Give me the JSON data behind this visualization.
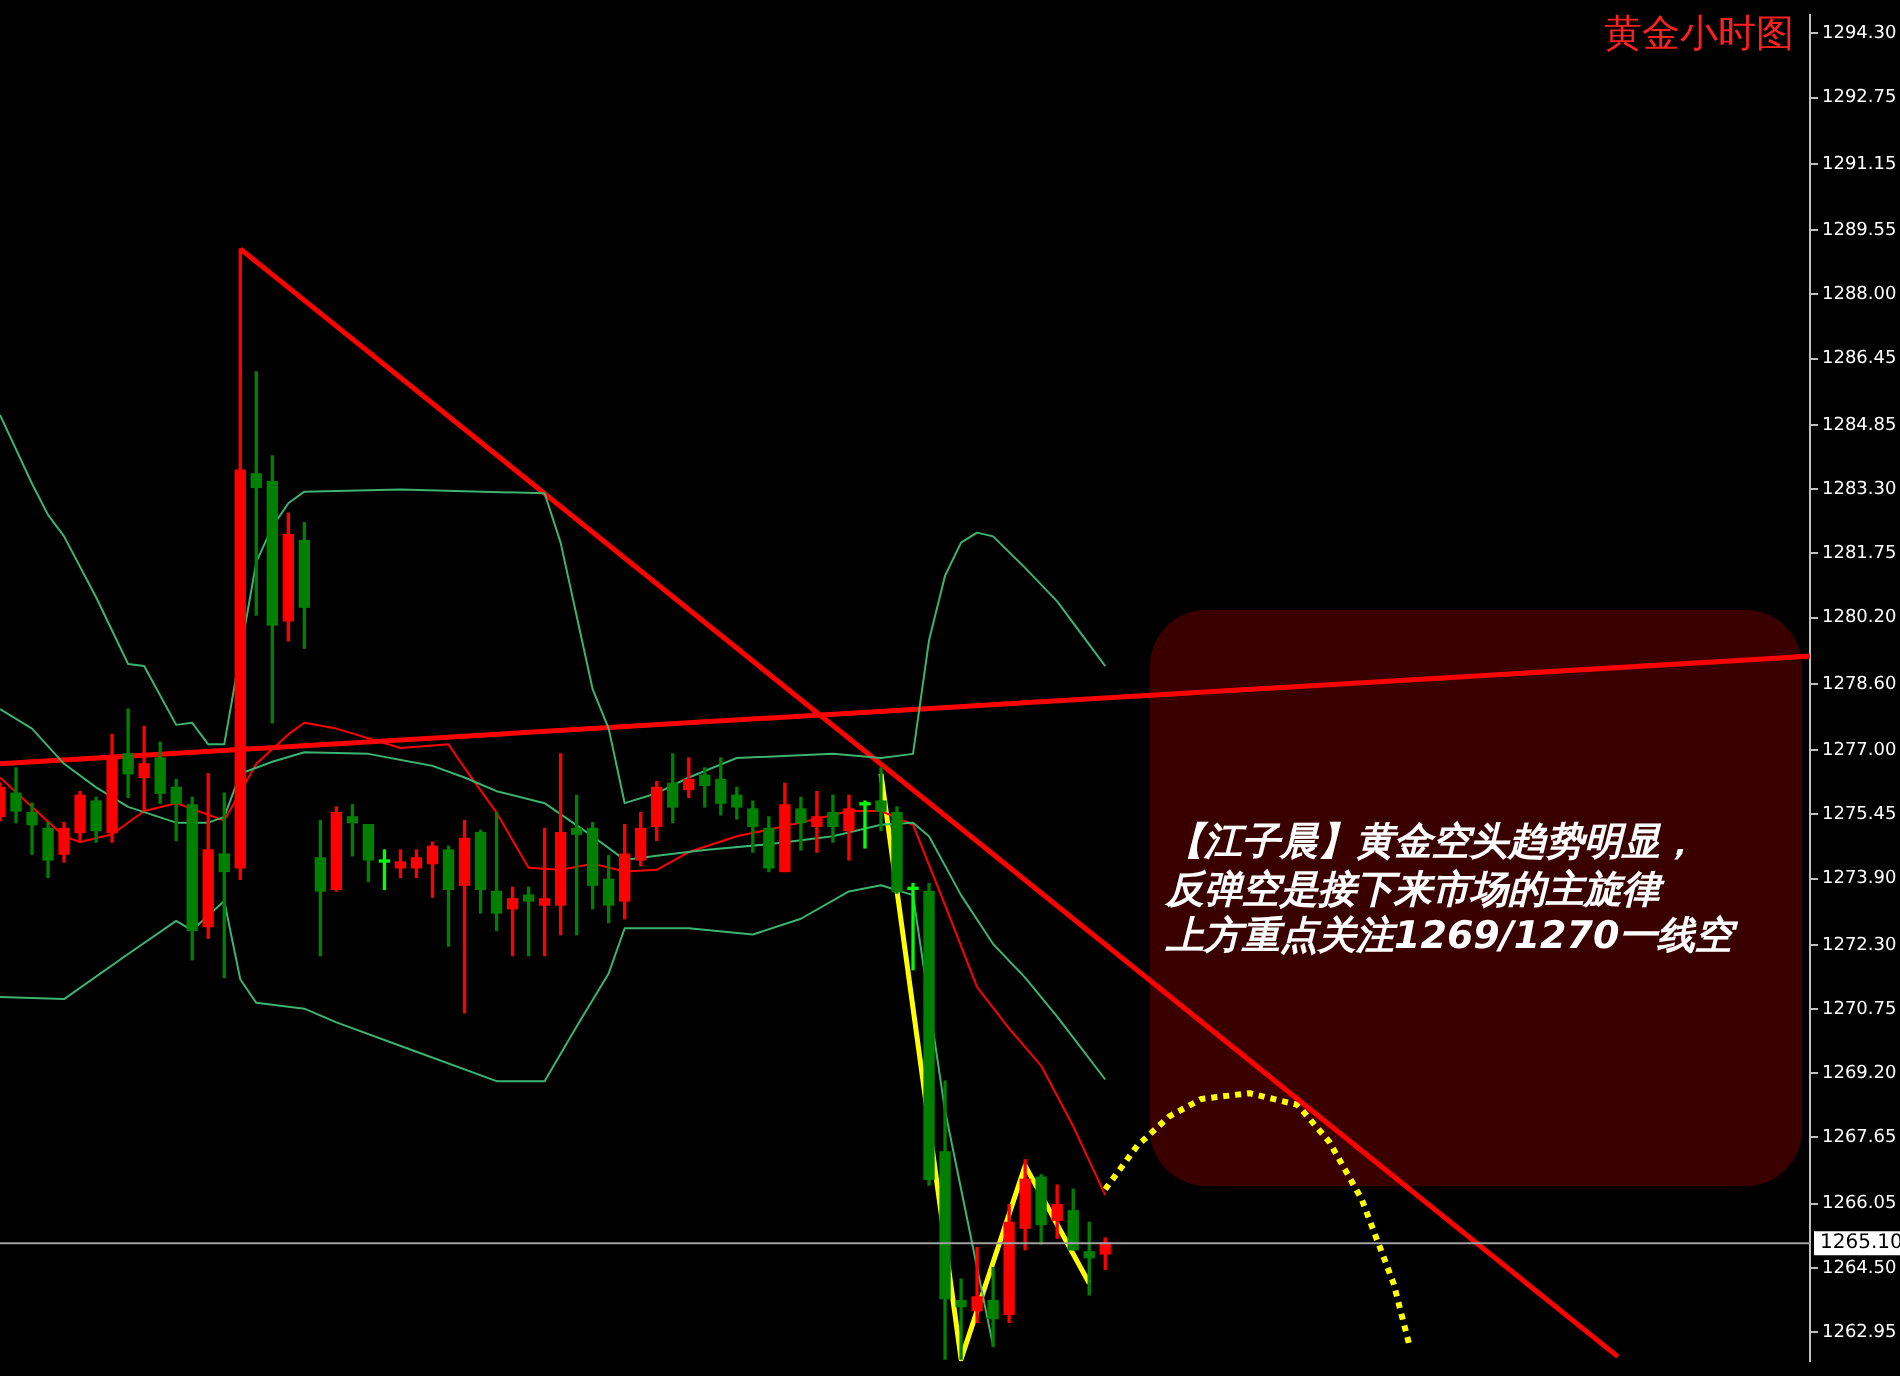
{
  "chart_data": {
    "type": "candlestick",
    "title": "黄金小时图",
    "annotations": [
      "【江子晨】黄金空头趋势明显，",
      "反弹空是接下来市场的主旋律",
      "上方重点关注1269/1270一线空"
    ],
    "categories": [
      null,
      null,
      null,
      null,
      null,
      null,
      null,
      null,
      null,
      null,
      null,
      null,
      null,
      null,
      null,
      null,
      null,
      null,
      null,
      null,
      null,
      null,
      null,
      null,
      null,
      null,
      null,
      null,
      null,
      null,
      null,
      null,
      null,
      null,
      null,
      null,
      null,
      null,
      null,
      null,
      null,
      null,
      null,
      null,
      null,
      null,
      null,
      null,
      null,
      null,
      null,
      null,
      null,
      null,
      null,
      null,
      null,
      null,
      null,
      null,
      null,
      null,
      null,
      null,
      null,
      null,
      null,
      null,
      null,
      null,
      null,
      null,
      null,
      null,
      null,
      null,
      null,
      null,
      null,
      null,
      null,
      null,
      null,
      null,
      null,
      null,
      null,
      null,
      null,
      null,
      null,
      null,
      null,
      null,
      null,
      null,
      null,
      null,
      null,
      null,
      null,
      null,
      null,
      null,
      null,
      null,
      null,
      null,
      null,
      null,
      null,
      null,
      null,
      null
    ],
    "ohlc": [
      [
        1275.4,
        1276.2,
        1275.3,
        1276.1
      ],
      [
        1275.96,
        1276.57,
        1275.25,
        1275.53
      ],
      [
        1275.49,
        1275.72,
        1274.49,
        1275.2
      ],
      [
        1275.11,
        1275.25,
        1273.93,
        1274.35
      ],
      [
        1274.49,
        1275.25,
        1274.3,
        1275.11
      ],
      [
        1275.01,
        1276.0,
        1274.78,
        1275.91
      ],
      [
        1275.77,
        1275.86,
        1274.78,
        1275.06
      ],
      [
        1275.01,
        1277.38,
        1274.78,
        1276.81
      ],
      [
        1276.91,
        1277.99,
        1275.86,
        1276.43
      ],
      [
        1276.34,
        1277.57,
        1275.53,
        1276.67
      ],
      [
        1276.81,
        1277.19,
        1275.72,
        1275.96
      ],
      [
        1276.1,
        1276.29,
        1274.82,
        1275.72
      ],
      [
        1275.68,
        1275.86,
        1271.94,
        1272.65
      ],
      [
        1272.74,
        1276.43,
        1272.46,
        1274.59
      ],
      [
        1274.49,
        1275.96,
        1271.51,
        1274.07
      ],
      [
        1274.16,
        1289.1,
        1273.88,
        1283.76
      ],
      [
        1283.67,
        1286.13,
        1280.26,
        1283.34
      ],
      [
        1283.48,
        1284.1,
        1277.66,
        1280.02
      ],
      [
        1280.12,
        1282.72,
        1279.64,
        1282.2
      ],
      [
        1282.06,
        1282.49,
        1279.46,
        1280.45
      ],
      [
        1274.4,
        1275.3,
        1272.04,
        1273.6
      ],
      [
        1273.64,
        1275.63,
        1273.6,
        1275.49
      ],
      [
        1275.39,
        1275.68,
        1274.45,
        1275.25
      ],
      [
        1275.2,
        1275.2,
        1273.83,
        1274.35
      ],
      [
        1274.3,
        1274.59,
        1273.64,
        1274.3
      ],
      [
        1274.16,
        1274.59,
        1273.93,
        1274.3
      ],
      [
        1274.16,
        1274.59,
        1273.93,
        1274.4
      ],
      [
        1274.26,
        1274.78,
        1273.45,
        1274.68
      ],
      [
        1274.59,
        1274.68,
        1272.27,
        1273.64
      ],
      [
        1273.74,
        1275.3,
        1270.66,
        1274.87
      ],
      [
        1275.01,
        1275.06,
        1273.07,
        1273.64
      ],
      [
        1273.59,
        1275.49,
        1272.65,
        1273.07
      ],
      [
        1273.17,
        1273.69,
        1272.04,
        1273.41
      ],
      [
        1273.5,
        1273.69,
        1272.04,
        1273.36
      ],
      [
        1273.26,
        1275.11,
        1272.04,
        1273.41
      ],
      [
        1273.26,
        1276.91,
        1272.55,
        1275.01
      ],
      [
        1275.11,
        1275.91,
        1272.55,
        1274.97
      ],
      [
        1275.11,
        1275.25,
        1273.17,
        1273.74
      ],
      [
        1273.88,
        1274.45,
        1272.84,
        1273.26
      ],
      [
        1273.36,
        1275.2,
        1272.93,
        1274.49
      ],
      [
        1274.35,
        1275.49,
        1274.21,
        1275.11
      ],
      [
        1275.16,
        1276.24,
        1274.82,
        1276.1
      ],
      [
        1276.2,
        1276.91,
        1275.25,
        1275.63
      ],
      [
        1276.05,
        1276.81,
        1275.86,
        1276.29
      ],
      [
        1276.39,
        1276.57,
        1275.63,
        1276.15
      ],
      [
        1276.29,
        1276.81,
        1275.44,
        1275.72
      ],
      [
        1275.91,
        1276.1,
        1275.34,
        1275.63
      ],
      [
        1275.58,
        1275.77,
        1274.54,
        1275.16
      ],
      [
        1275.11,
        1275.39,
        1274.07,
        1274.16
      ],
      [
        1274.07,
        1276.2,
        1274.07,
        1275.68
      ],
      [
        1275.58,
        1275.86,
        1274.59,
        1275.25
      ],
      [
        1275.16,
        1276.0,
        1274.54,
        1275.39
      ],
      [
        1275.49,
        1275.91,
        1274.78,
        1275.16
      ],
      [
        1275.06,
        1275.91,
        1274.35,
        1275.58
      ],
      [
        1275.68,
        1275.77,
        1274.64,
        1275.68
      ],
      [
        1275.77,
        1276.57,
        1275.06,
        1275.53
      ],
      [
        1275.49,
        1275.63,
        1273.55,
        1273.59
      ],
      [
        1273.64,
        1273.78,
        1271.7,
        1273.64
      ],
      [
        1273.59,
        1273.78,
        1266.5,
        1266.64
      ],
      [
        1267.3,
        1269.01,
        1262.3,
        1263.76
      ],
      [
        1263.71,
        1264.23,
        1262.3,
        1263.57
      ],
      [
        1263.47,
        1264.99,
        1263.19,
        1263.8
      ],
      [
        1263.71,
        1264.51,
        1262.6,
        1263.28
      ],
      [
        1263.38,
        1266.03,
        1263.19,
        1265.6
      ],
      [
        1265.46,
        1267.11,
        1264.94,
        1266.64
      ],
      [
        1266.69,
        1266.75,
        1265.08,
        1265.55
      ],
      [
        1265.65,
        1266.5,
        1265.22,
        1266.03
      ],
      [
        1265.88,
        1266.4,
        1264.94,
        1264.94
      ],
      [
        1264.89,
        1265.6,
        1263.85,
        1264.75
      ],
      [
        1264.84,
        1265.22,
        1264.47,
        1265.1
      ],
      null,
      null,
      null,
      null,
      null,
      null,
      null,
      null,
      null,
      null,
      null,
      null,
      null,
      null,
      null,
      null,
      null,
      null,
      null,
      null,
      null,
      null,
      null,
      null,
      null,
      null,
      null,
      null,
      null,
      null,
      null,
      null,
      null,
      null,
      null,
      null,
      null,
      null,
      null,
      null,
      null,
      null,
      null,
      null
    ],
    "colors": [
      "#ff0000",
      "#008000",
      "#008000",
      "#008000",
      "#ff0000",
      "#ff0000",
      "#008000",
      "#ff0000",
      "#008000",
      "#ff0000",
      "#008000",
      "#008000",
      "#008000",
      "#ff0000",
      "#008000",
      "#ff0000",
      "#008000",
      "#008000",
      "#ff0000",
      "#008000",
      "#008000",
      "#ff0000",
      "#008000",
      "#008000",
      "#00ff00",
      "#ff0000",
      "#ff0000",
      "#ff0000",
      "#008000",
      "#ff0000",
      "#008000",
      "#008000",
      "#ff0000",
      "#008000",
      "#ff0000",
      "#ff0000",
      "#008000",
      "#008000",
      "#008000",
      "#ff0000",
      "#ff0000",
      "#ff0000",
      "#008000",
      "#ff0000",
      "#008000",
      "#008000",
      "#008000",
      "#008000",
      "#008000",
      "#ff0000",
      "#008000",
      "#ff0000",
      "#008000",
      "#ff0000",
      "#00ff00",
      "#008000",
      "#008000",
      "#00ff00",
      "#008000",
      "#008000",
      "#008000",
      "#ff0000",
      "#008000",
      "#ff0000",
      "#ff0000",
      "#008000",
      "#ff0000",
      "#008000",
      "#008000",
      "#ff0000",
      null,
      null,
      null,
      null,
      null,
      null,
      null,
      null,
      null,
      null,
      null,
      null,
      null,
      null,
      null,
      null,
      null,
      null,
      null,
      null,
      null,
      null,
      null,
      null,
      null,
      null,
      null,
      null,
      null,
      null,
      null,
      null,
      null,
      null,
      null,
      null,
      null,
      null,
      null,
      null,
      null,
      null,
      null,
      null
    ],
    "series": [
      {
        "type": "line",
        "color": "#3cb371",
        "values": [
          1285.09,
          null,
          1283.43,
          1282.68,
          1282.16,
          null,
          1280.69,
          null,
          1279.08,
          1279.03,
          null,
          1277.61,
          1277.66,
          1277.14,
          1277.14,
          null,
          1281.54,
          1282.39,
          1282.96,
          1283.24,
          null,
          null,
          null,
          null,
          null,
          1283.29,
          null,
          null,
          null,
          null,
          null,
          null,
          null,
          null,
          1283.2,
          1282.01,
          null,
          1278.47,
          1277.52,
          1275.72,
          null,
          1275.96,
          null,
          1276.34,
          null,
          null,
          1276.81,
          null,
          null,
          null,
          null,
          null,
          1276.91,
          null,
          null,
          1276.81,
          null,
          1276.91,
          1279.65,
          1281.21,
          1282.01,
          1282.25,
          1282.16,
          null,
          1281.4,
          null,
          1280.59,
          null,
          null,
          1279.03,
          null,
          null,
          null,
          null,
          null,
          null,
          null,
          null,
          null,
          null,
          null,
          null,
          null,
          null,
          null,
          null,
          null,
          null,
          null,
          null,
          null,
          null,
          null,
          null,
          null,
          null,
          null,
          null,
          null,
          null,
          null,
          null,
          null,
          null,
          null,
          null,
          null,
          null,
          null,
          null,
          null,
          null,
          null,
          null
        ]
      },
      {
        "type": "line",
        "color": "#3cb371",
        "values": [
          1277.99,
          null,
          1277.52,
          null,
          1276.67,
          null,
          1276.1,
          null,
          1275.63,
          null,
          null,
          1275.25,
          null,
          1275.25,
          1275.39,
          1276.43,
          null,
          1276.72,
          null,
          1276.95,
          null,
          null,
          null,
          1276.91,
          null,
          null,
          null,
          1276.62,
          null,
          1276.34,
          null,
          1276.01,
          null,
          null,
          1275.72,
          null,
          null,
          1274.92,
          null,
          1274.35,
          null,
          1274.45,
          null,
          null,
          1274.59,
          null,
          null,
          null,
          1274.73,
          null,
          null,
          null,
          1274.92,
          null,
          null,
          1275.2,
          null,
          1275.25,
          1274.92,
          null,
          1273.5,
          null,
          1272.32,
          null,
          1271.51,
          null,
          1270.57,
          null,
          null,
          1269.05,
          null,
          null,
          null,
          null,
          null,
          null,
          null,
          null,
          null,
          null,
          null,
          null,
          null,
          null,
          null,
          null,
          null,
          null,
          null,
          null,
          null,
          null,
          null,
          null,
          null,
          null,
          null,
          null,
          null,
          null,
          null,
          null,
          null,
          null,
          null,
          null,
          null,
          null,
          null,
          null,
          null,
          null,
          null,
          null
        ]
      },
      {
        "type": "line",
        "color": "#3cb371",
        "values": [
          1271.04,
          null,
          null,
          null,
          1270.99,
          null,
          null,
          null,
          1272.08,
          null,
          null,
          1272.88,
          1272.65,
          null,
          1273.36,
          1271.47,
          1270.9,
          null,
          null,
          1270.76,
          null,
          1270.43,
          null,
          null,
          null,
          null,
          1269.72,
          null,
          null,
          null,
          null,
          1269.01,
          null,
          null,
          1269.01,
          null,
          1270.33,
          null,
          1271.61,
          1272.7,
          null,
          null,
          null,
          1272.7,
          null,
          null,
          null,
          1272.55,
          null,
          null,
          1272.93,
          null,
          null,
          1273.59,
          null,
          1273.74,
          null,
          1273.5,
          null,
          1268.3,
          null,
          1264.51,
          1262.62,
          null,
          null,
          null,
          null,
          null,
          null,
          null,
          null,
          null,
          null,
          null,
          null,
          null,
          null,
          null,
          null,
          null,
          null,
          null,
          null,
          null,
          null,
          null,
          null,
          null,
          null,
          null,
          null,
          null,
          null,
          null,
          null,
          null,
          null,
          null,
          null,
          null,
          null,
          null,
          null,
          null,
          null,
          null,
          null,
          null,
          null,
          null,
          null,
          null,
          null,
          null
        ]
      },
      {
        "type": "line",
        "color": "#ff0000",
        "values": [
          1276.34,
          null,
          1275.63,
          null,
          1274.92,
          1274.78,
          null,
          1274.97,
          null,
          1275.53,
          null,
          1275.72,
          null,
          1275.44,
          1275.3,
          null,
          1276.67,
          null,
          1277.38,
          1277.66,
          null,
          1277.52,
          null,
          null,
          null,
          1277.05,
          null,
          null,
          1277.14,
          1276.57,
          null,
          1275.49,
          null,
          1274.16,
          null,
          1274.11,
          null,
          1274.26,
          null,
          1274.07,
          null,
          1274.11,
          null,
          1274.54,
          null,
          null,
          1274.92,
          null,
          null,
          null,
          1275.25,
          null,
          null,
          1275.53,
          null,
          1275.53,
          null,
          1275.2,
          null,
          1273.26,
          null,
          1271.28,
          null,
          1270.28,
          null,
          1269.38,
          null,
          1267.92,
          null,
          1266.26,
          null,
          null,
          null,
          null,
          null,
          null,
          null,
          null,
          null,
          null,
          null,
          null,
          null,
          null,
          null,
          null,
          null,
          null,
          null,
          null,
          null,
          null,
          null,
          null,
          null,
          null,
          null,
          null,
          null,
          null,
          null,
          null,
          null,
          null,
          null,
          null,
          null,
          null,
          null,
          null,
          null,
          null,
          null,
          null
        ]
      },
      {
        "type": "line",
        "color": "#ff0000",
        "values": [
          1276.67,
          null,
          null,
          null,
          null,
          null,
          null,
          null,
          null,
          null,
          null,
          null,
          null,
          null,
          null,
          null,
          null,
          null,
          null,
          null,
          null,
          null,
          null,
          null,
          null,
          null,
          null,
          null,
          null,
          null,
          null,
          null,
          null,
          null,
          null,
          null,
          null,
          null,
          null,
          null,
          null,
          null,
          null,
          null,
          null,
          null,
          null,
          null,
          null,
          null,
          null,
          null,
          null,
          null,
          null,
          null,
          null,
          null,
          null,
          null,
          null,
          null,
          null,
          null,
          null,
          null,
          null,
          null,
          null,
          null,
          null,
          null,
          null,
          null,
          null,
          null,
          null,
          null,
          null,
          null,
          null,
          null,
          null,
          null,
          null,
          null,
          null,
          null,
          null,
          null,
          null,
          null,
          null,
          null,
          null,
          null,
          null,
          null,
          null,
          null,
          null,
          null,
          null,
          null,
          null,
          null,
          null,
          null,
          null,
          null,
          null,
          null,
          null,
          1279.27
        ]
      },
      {
        "type": "line",
        "color": "#ff0000",
        "values": [
          null,
          null,
          null,
          null,
          null,
          null,
          null,
          null,
          null,
          null,
          null,
          null,
          null,
          null,
          null,
          1289.1,
          null,
          null,
          null,
          null,
          null,
          null,
          null,
          null,
          null,
          null,
          null,
          null,
          null,
          null,
          null,
          null,
          null,
          null,
          null,
          null,
          null,
          null,
          null,
          null,
          null,
          null,
          null,
          null,
          null,
          null,
          null,
          null,
          null,
          null,
          null,
          null,
          null,
          null,
          null,
          null,
          null,
          null,
          null,
          null,
          null,
          null,
          null,
          null,
          null,
          null,
          null,
          null,
          null,
          null,
          null,
          null,
          null,
          null,
          null,
          null,
          null,
          null,
          null,
          null,
          null,
          null,
          null,
          null,
          null,
          null,
          null,
          null,
          null,
          null,
          null,
          null,
          null,
          null,
          null,
          null,
          null,
          null,
          null,
          null,
          null,
          1262.36,
          null,
          null,
          null,
          null,
          null,
          null,
          null,
          null,
          null,
          null,
          null,
          null
        ]
      },
      {
        "type": "line",
        "color": "#ffff00",
        "values": [
          null,
          null,
          null,
          null,
          null,
          null,
          null,
          null,
          null,
          null,
          null,
          null,
          null,
          null,
          null,
          null,
          null,
          null,
          null,
          null,
          null,
          null,
          null,
          null,
          null,
          null,
          null,
          null,
          null,
          null,
          null,
          null,
          null,
          null,
          null,
          null,
          null,
          null,
          null,
          null,
          null,
          null,
          null,
          null,
          null,
          null,
          null,
          null,
          null,
          null,
          null,
          null,
          null,
          null,
          null,
          1276.43,
          null,
          null,
          null,
          null,
          1262.3,
          null,
          null,
          null,
          1266.97,
          null,
          null,
          null,
          1264.13,
          null,
          null,
          null,
          null,
          null,
          null,
          null,
          null,
          null,
          null,
          null,
          null,
          null,
          null,
          null,
          null,
          null,
          null,
          null,
          null,
          null,
          null,
          null,
          null,
          null,
          null,
          null,
          null,
          null,
          null,
          null,
          null,
          null,
          null,
          null,
          null,
          null,
          null,
          null,
          null,
          null,
          null,
          null,
          null,
          null
        ]
      },
      {
        "type": "line",
        "color": "#ffff00",
        "line_style": "dotted",
        "values": [
          null,
          null,
          null,
          null,
          null,
          null,
          null,
          null,
          null,
          null,
          null,
          null,
          null,
          null,
          null,
          null,
          null,
          null,
          null,
          null,
          null,
          null,
          null,
          null,
          null,
          null,
          null,
          null,
          null,
          null,
          null,
          null,
          null,
          null,
          null,
          null,
          null,
          null,
          null,
          null,
          null,
          null,
          null,
          null,
          null,
          null,
          null,
          null,
          null,
          null,
          null,
          null,
          null,
          null,
          null,
          null,
          null,
          null,
          null,
          null,
          null,
          null,
          null,
          null,
          null,
          null,
          null,
          null,
          null,
          1266.4,
          null,
          1267.45,
          null,
          1268.16,
          null,
          1268.58,
          null,
          null,
          1268.72,
          null,
          null,
          1268.44,
          null,
          1267.54,
          null,
          1266.17,
          null,
          1264.13,
          1262.62,
          null,
          null,
          null,
          null,
          null,
          null,
          null,
          null,
          null,
          null,
          null,
          null,
          null,
          null,
          null,
          null,
          null,
          null,
          null,
          null,
          null,
          null,
          null,
          null,
          null
        ]
      }
    ],
    "ylim": [
      1262.25,
      1294.75
    ],
    "yticks": [
      {
        "value": 1294.3,
        "label": "1294.30"
      },
      {
        "value": 1292.75,
        "label": "1292.75"
      },
      {
        "value": 1291.15,
        "label": "1291.15"
      },
      {
        "value": 1289.55,
        "label": "1289.55"
      },
      {
        "value": 1288.0,
        "label": "1288.00"
      },
      {
        "value": 1286.45,
        "label": "1286.45"
      },
      {
        "value": 1284.85,
        "label": "1284.85"
      },
      {
        "value": 1283.3,
        "label": "1283.30"
      },
      {
        "value": 1281.75,
        "label": "1281.75"
      },
      {
        "value": 1280.2,
        "label": "1280.20"
      },
      {
        "value": 1278.6,
        "label": "1278.60"
      },
      {
        "value": 1277.0,
        "label": "1277.00"
      },
      {
        "value": 1275.45,
        "label": "1275.45"
      },
      {
        "value": 1273.9,
        "label": "1273.90"
      },
      {
        "value": 1272.3,
        "label": "1272.30"
      },
      {
        "value": 1270.75,
        "label": "1270.75"
      },
      {
        "value": 1269.2,
        "label": "1269.20"
      },
      {
        "value": 1267.65,
        "label": "1267.65"
      },
      {
        "value": 1266.05,
        "label": "1266.05"
      },
      {
        "value": 1264.5,
        "label": "1264.50"
      },
      {
        "value": 1262.95,
        "label": "1262.95"
      }
    ],
    "tick_labels": "y",
    "ref_lines": [
      {
        "axis": "y",
        "value": 1265.1,
        "label": "1265.10",
        "color": "#a0a0a0"
      }
    ]
  }
}
